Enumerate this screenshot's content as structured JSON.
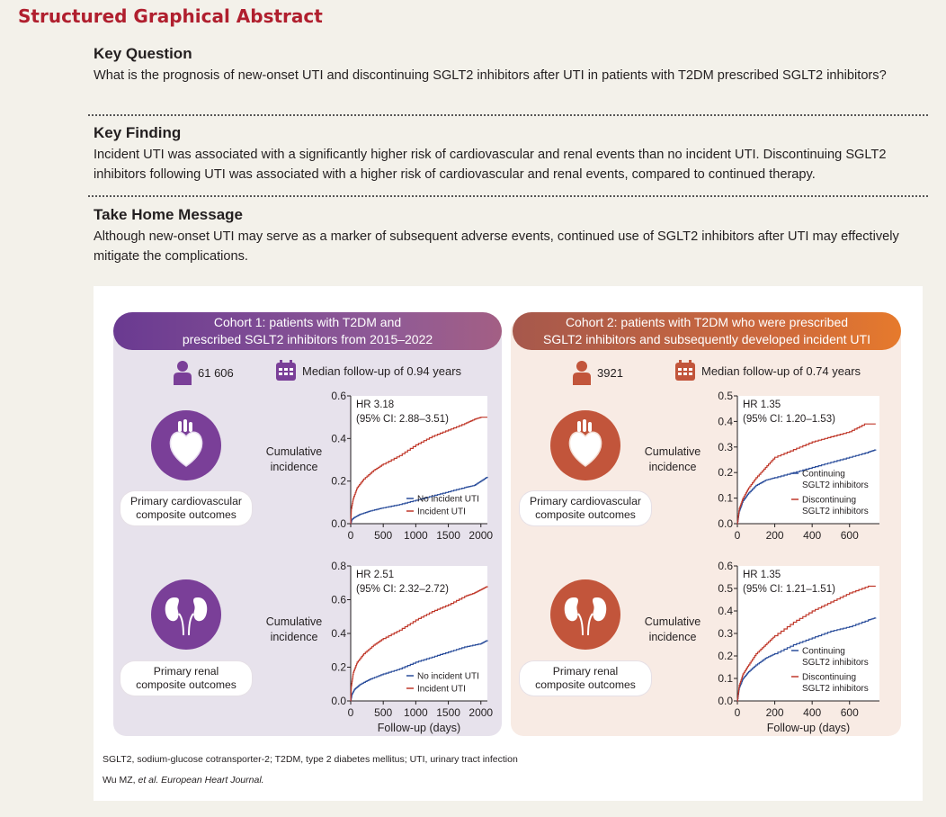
{
  "title": "Structured Graphical Abstract",
  "key_question": {
    "heading": "Key Question",
    "text": "What is the prognosis of new-onset UTI and discontinuing SGLT2 inhibitors after UTI in patients with T2DM prescribed SGLT2 inhibitors?"
  },
  "key_finding": {
    "heading": "Key Finding",
    "text": "Incident UTI was associated with a significantly higher risk of cardiovascular and renal events than no incident UTI. Discontinuing SGLT2 inhibitors following UTI was associated with a higher risk of cardiovascular and renal events, compared to continued therapy."
  },
  "take_home": {
    "heading": "Take Home Message",
    "text": "Although new-onset UTI may serve as a marker of subsequent adverse events, continued use of SGLT2 inhibitors after UTI may effectively mitigate the complications."
  },
  "cohort1": {
    "title_line1": "Cohort 1: patients with T2DM and",
    "title_line2": "prescribed SGLT2 inhibitors from 2015–2022",
    "patients": "61 606",
    "followup": "Median follow-up of 0.94 years",
    "cv_label_1": "Primary cardiovascular",
    "cv_label_2": "composite outcomes",
    "renal_label_1": "Primary renal",
    "renal_label_2": "composite outcomes"
  },
  "cohort2": {
    "title_line1": "Cohort 2: patients with T2DM who were prescribed",
    "title_line2": "SGLT2 inhibitors and subsequently developed incident UTI",
    "patients": "3921",
    "followup": "Median follow-up of 0.74 years",
    "cv_label_1": "Primary cardiovascular",
    "cv_label_2": "composite outcomes",
    "renal_label_1": "Primary renal",
    "renal_label_2": "composite outcomes"
  },
  "ylabel_1": "Cumulative",
  "ylabel_2": "incidence",
  "colors": {
    "blue": "#2a4d9b",
    "red": "#c0392b",
    "purple": "#7a3f98",
    "orange": "#c2553b"
  },
  "chart_data": [
    {
      "type": "line",
      "id": "c1_cv",
      "hr": "HR 3.18",
      "ci": "(95% CI: 2.88–3.51)",
      "xlabel": "",
      "ylabel": "Cumulative incidence",
      "xlim": [
        0,
        2100
      ],
      "ylim": [
        0,
        0.6
      ],
      "xticks": [
        0,
        500,
        1000,
        1500,
        2000
      ],
      "yticks": [
        0.0,
        0.2,
        0.4,
        0.6
      ],
      "xtick_labels": [
        "0",
        "500",
        "1000",
        "1500",
        "2000"
      ],
      "ytick_labels": [
        "0.0",
        "0.2",
        "0.4",
        "0.6"
      ],
      "series": [
        {
          "name": "No incident UTI",
          "color": "#2a4d9b",
          "x": [
            0,
            20,
            60,
            150,
            300,
            500,
            750,
            1000,
            1250,
            1500,
            1750,
            1900,
            2000,
            2100
          ],
          "y": [
            0,
            0.02,
            0.03,
            0.045,
            0.06,
            0.075,
            0.09,
            0.11,
            0.13,
            0.15,
            0.17,
            0.18,
            0.2,
            0.22
          ]
        },
        {
          "name": "Incident UTI",
          "color": "#c0392b",
          "x": [
            0,
            10,
            40,
            100,
            200,
            350,
            500,
            750,
            1000,
            1250,
            1500,
            1750,
            1900,
            2000,
            2100
          ],
          "y": [
            0,
            0.07,
            0.12,
            0.17,
            0.21,
            0.25,
            0.28,
            0.32,
            0.37,
            0.41,
            0.44,
            0.47,
            0.49,
            0.5,
            0.5
          ]
        }
      ]
    },
    {
      "type": "line",
      "id": "c1_renal",
      "hr": "HR 2.51",
      "ci": "(95% CI: 2.32–2.72)",
      "xlabel": "Follow-up (days)",
      "ylabel": "Cumulative incidence",
      "xlim": [
        0,
        2100
      ],
      "ylim": [
        0,
        0.8
      ],
      "xticks": [
        0,
        500,
        1000,
        1500,
        2000
      ],
      "yticks": [
        0.0,
        0.2,
        0.4,
        0.6,
        0.8
      ],
      "xtick_labels": [
        "0",
        "500",
        "1000",
        "1500",
        "2000"
      ],
      "ytick_labels": [
        "0.0",
        "0.2",
        "0.4",
        "0.6",
        "0.8"
      ],
      "series": [
        {
          "name": "No incident UTI",
          "color": "#2a4d9b",
          "x": [
            0,
            20,
            60,
            150,
            300,
            500,
            750,
            1000,
            1250,
            1500,
            1750,
            2000,
            2100
          ],
          "y": [
            0,
            0.04,
            0.07,
            0.1,
            0.13,
            0.16,
            0.19,
            0.23,
            0.26,
            0.29,
            0.32,
            0.34,
            0.36
          ]
        },
        {
          "name": "Incident UTI",
          "color": "#c0392b",
          "x": [
            0,
            10,
            40,
            100,
            200,
            350,
            500,
            750,
            1000,
            1250,
            1500,
            1750,
            1900,
            2000,
            2100
          ],
          "y": [
            0,
            0.09,
            0.17,
            0.23,
            0.28,
            0.33,
            0.37,
            0.42,
            0.48,
            0.53,
            0.57,
            0.62,
            0.64,
            0.66,
            0.68
          ]
        }
      ]
    },
    {
      "type": "line",
      "id": "c2_cv",
      "hr": "HR 1.35",
      "ci": "(95% CI: 1.20–1.53)",
      "xlabel": "",
      "ylabel": "Cumulative incidence",
      "xlim": [
        0,
        760
      ],
      "ylim": [
        0,
        0.5
      ],
      "xticks": [
        0,
        200,
        400,
        600
      ],
      "yticks": [
        0.0,
        0.1,
        0.2,
        0.3,
        0.4,
        0.5
      ],
      "xtick_labels": [
        "0",
        "200",
        "400",
        "600"
      ],
      "ytick_labels": [
        "0.0",
        "0.1",
        "0.2",
        "0.3",
        "0.4",
        "0.5"
      ],
      "series": [
        {
          "name": "Continuing SGLT2 inhibitors",
          "color": "#2a4d9b",
          "x": [
            0,
            10,
            30,
            60,
            100,
            150,
            200,
            300,
            400,
            500,
            600,
            700,
            740
          ],
          "y": [
            0,
            0.05,
            0.09,
            0.12,
            0.15,
            0.17,
            0.18,
            0.2,
            0.22,
            0.24,
            0.26,
            0.28,
            0.29
          ]
        },
        {
          "name": "Discontinuing SGLT2 inhibitors",
          "color": "#c0392b",
          "x": [
            0,
            10,
            30,
            60,
            100,
            150,
            200,
            300,
            400,
            500,
            600,
            680,
            740
          ],
          "y": [
            0,
            0.06,
            0.1,
            0.14,
            0.18,
            0.22,
            0.26,
            0.29,
            0.32,
            0.34,
            0.36,
            0.39,
            0.39
          ]
        }
      ]
    },
    {
      "type": "line",
      "id": "c2_renal",
      "hr": "HR 1.35",
      "ci": "(95% CI: 1.21–1.51)",
      "xlabel": "Follow-up (days)",
      "ylabel": "Cumulative incidence",
      "xlim": [
        0,
        760
      ],
      "ylim": [
        0,
        0.6
      ],
      "xticks": [
        0,
        200,
        400,
        600
      ],
      "yticks": [
        0.0,
        0.1,
        0.2,
        0.3,
        0.4,
        0.5,
        0.6
      ],
      "xtick_labels": [
        "0",
        "200",
        "400",
        "600"
      ],
      "ytick_labels": [
        "0.0",
        "0.1",
        "0.2",
        "0.3",
        "0.4",
        "0.5",
        "0.6"
      ],
      "series": [
        {
          "name": "Continuing SGLT2 inhibitors",
          "color": "#2a4d9b",
          "x": [
            0,
            10,
            30,
            60,
            100,
            150,
            200,
            300,
            400,
            500,
            600,
            700,
            740
          ],
          "y": [
            0,
            0.06,
            0.1,
            0.13,
            0.16,
            0.19,
            0.21,
            0.25,
            0.28,
            0.31,
            0.33,
            0.36,
            0.37
          ]
        },
        {
          "name": "Discontinuing SGLT2 inhibitors",
          "color": "#c0392b",
          "x": [
            0,
            10,
            30,
            60,
            100,
            150,
            200,
            300,
            400,
            500,
            600,
            700,
            740
          ],
          "y": [
            0,
            0.07,
            0.12,
            0.16,
            0.21,
            0.25,
            0.29,
            0.35,
            0.4,
            0.44,
            0.48,
            0.51,
            0.51
          ]
        }
      ]
    }
  ],
  "footnote": "SGLT2, sodium-glucose cotransporter-2; T2DM, type 2 diabetes mellitus; UTI, urinary tract infection",
  "citation_author": "Wu MZ, ",
  "citation_etal": "et al. European Heart Journal.",
  "icons": [
    "person-icon",
    "calendar-icon",
    "heart-icon",
    "kidney-icon"
  ]
}
